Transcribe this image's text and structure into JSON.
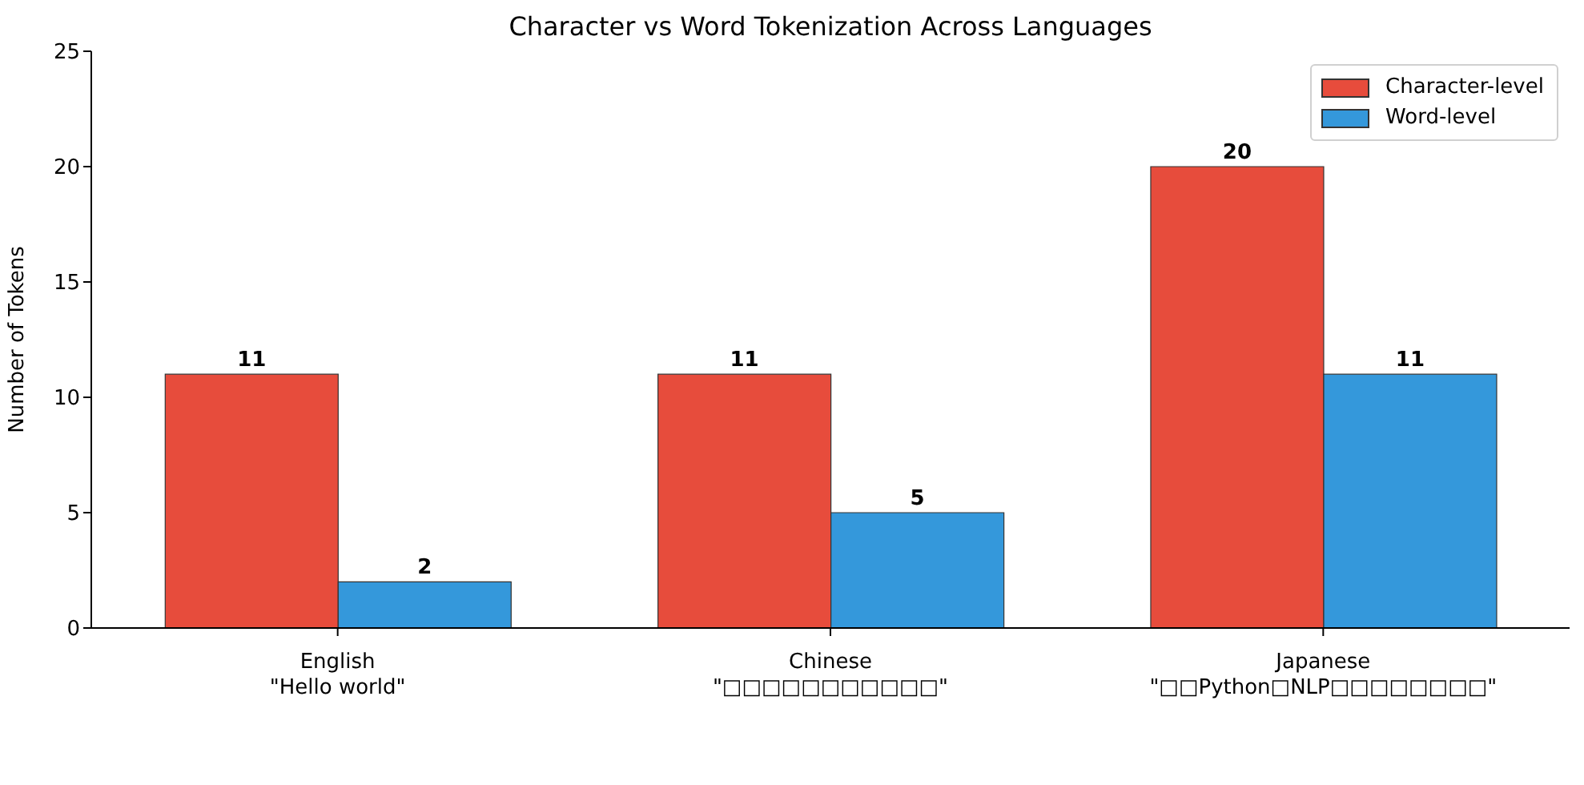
{
  "chart_data": {
    "type": "bar",
    "title": "Character vs Word Tokenization Across Languages",
    "ylabel": "Number of Tokens",
    "categories": [
      "English\n\"Hello world\"",
      "Chinese\n\"□□□□□□□□□□□\"",
      "Japanese\n\"□□Python□NLP□□□□□□□□\""
    ],
    "series": [
      {
        "name": "Character-level",
        "color": "#e74c3c",
        "values": [
          11,
          11,
          20
        ]
      },
      {
        "name": "Word-level",
        "color": "#3498db",
        "values": [
          2,
          5,
          11
        ]
      }
    ],
    "ylim": [
      0,
      25
    ],
    "yticks": [
      0,
      5,
      10,
      15,
      20,
      25
    ],
    "legend": "top right",
    "data_labels": true
  }
}
